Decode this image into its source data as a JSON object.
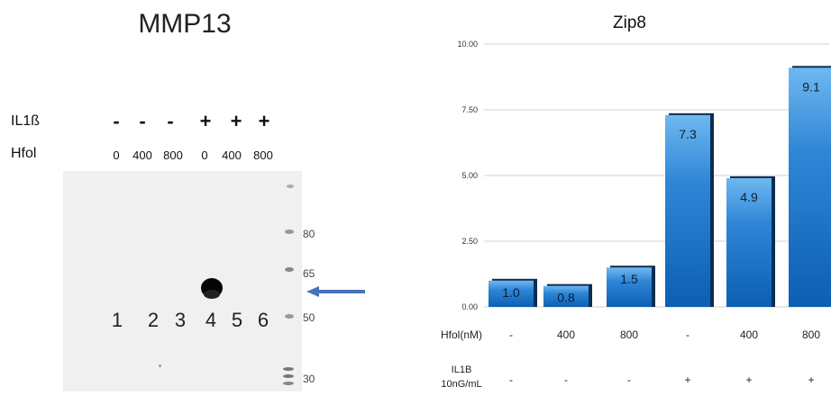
{
  "blot": {
    "title": "MMP13",
    "row_labels": {
      "il1b": "IL1ß",
      "hfol": "Hfol"
    },
    "il1b": [
      "-",
      "-",
      "-",
      "+",
      "+",
      "+"
    ],
    "hfol": [
      "0",
      "400",
      "800",
      "0",
      "400",
      "800"
    ],
    "lanes": [
      "1",
      "2",
      "3",
      "4",
      "5",
      "6"
    ],
    "markers": [
      "80",
      "65",
      "50",
      "30"
    ],
    "arrow_color": "#4a72b8"
  },
  "chart_data": {
    "type": "bar",
    "title": "Zip8",
    "yticks": [
      "10.00",
      "7.50",
      "5.00",
      "2.50",
      "0.00"
    ],
    "ylim": [
      0,
      10
    ],
    "values": [
      1.0,
      0.8,
      1.5,
      7.3,
      4.9,
      9.1
    ],
    "value_labels": [
      "1.0",
      "0.8",
      "1.5",
      "7.3",
      "4.9",
      "9.1"
    ],
    "row1_label": "Hfol(nM)",
    "row1": [
      "-",
      "400",
      "800",
      "-",
      "400",
      "800"
    ],
    "row2_label_line1": "IL1B",
    "row2_label_line2": "10nG/mL",
    "row2": [
      "-",
      "-",
      "-",
      "+",
      "+",
      "+"
    ],
    "bar_color": "#2f86d6"
  }
}
